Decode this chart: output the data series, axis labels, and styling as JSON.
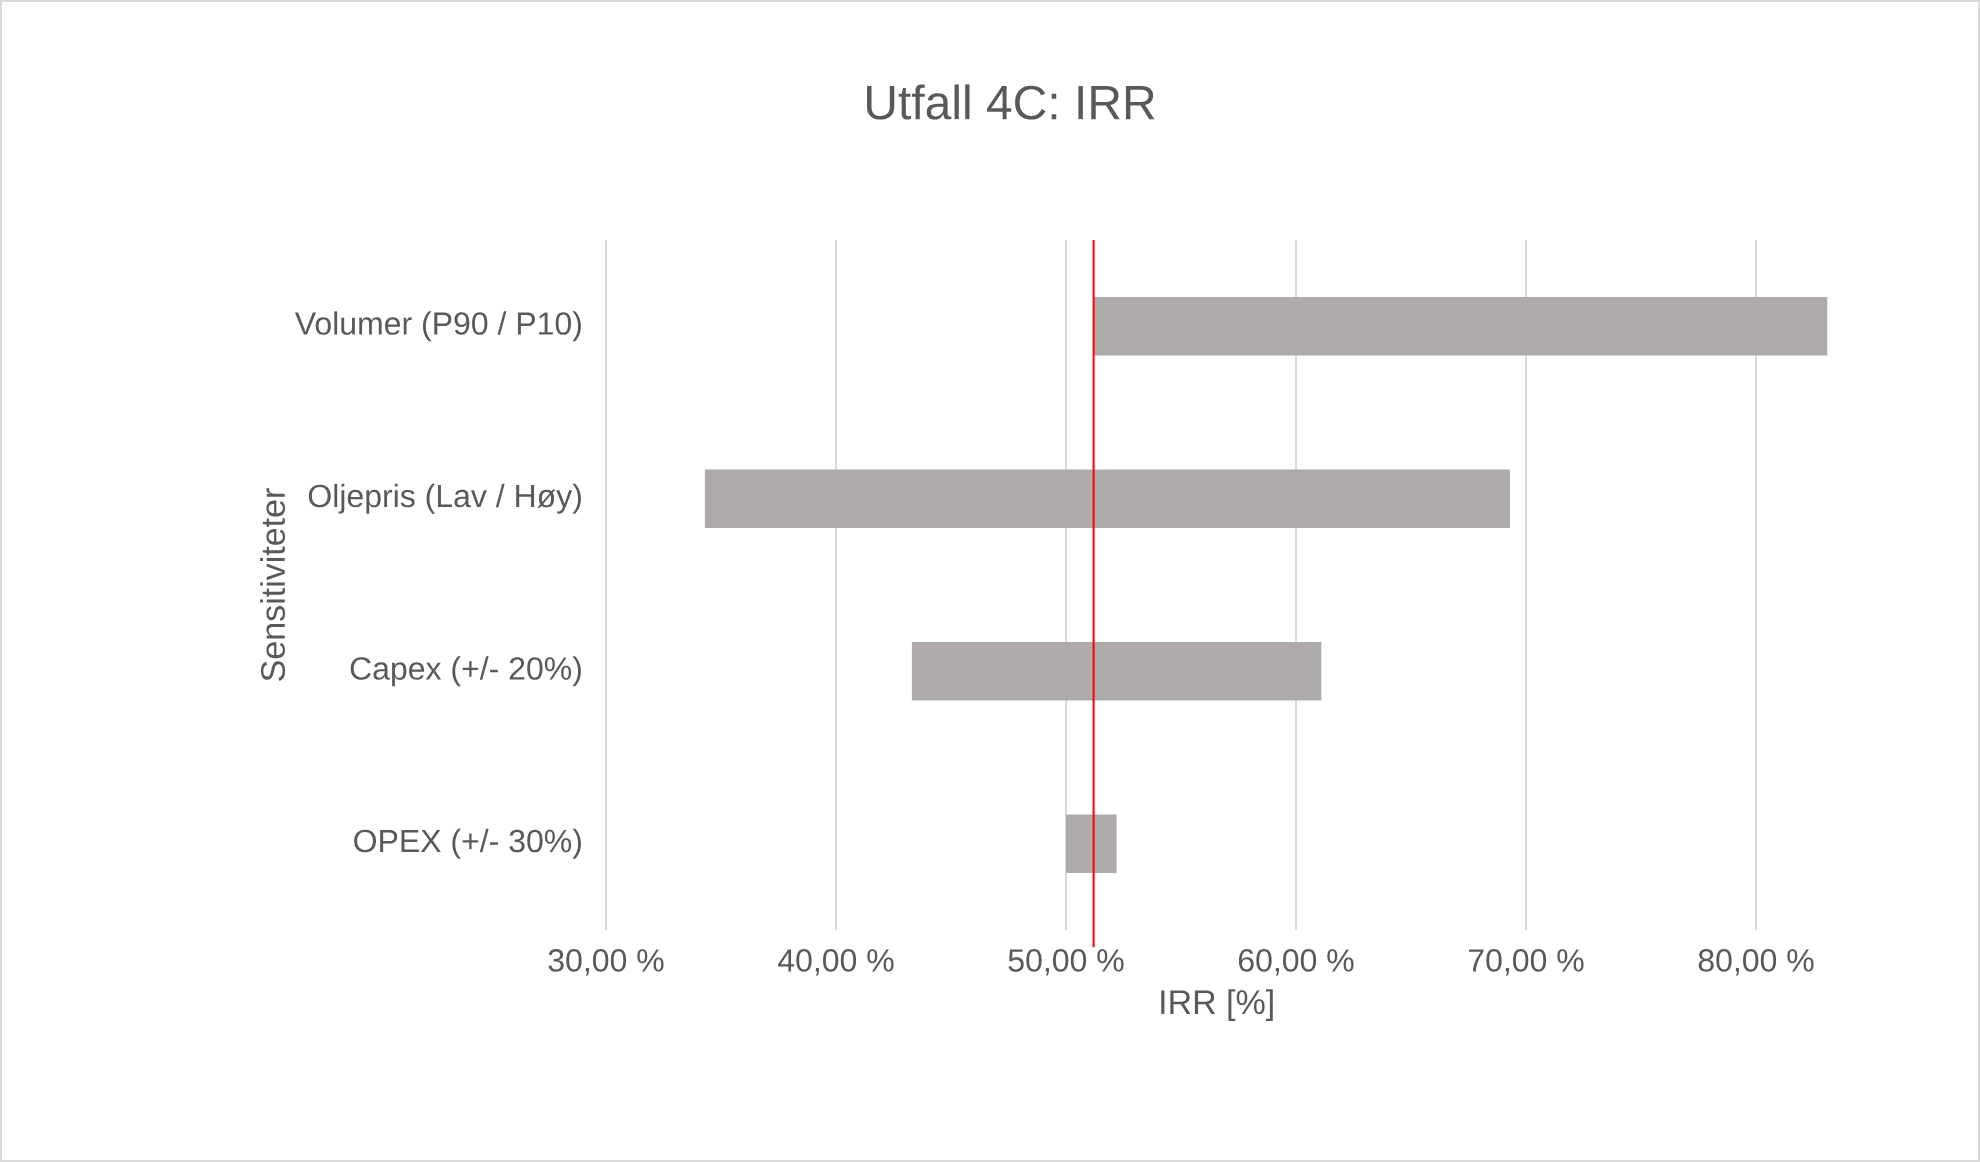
{
  "chart_data": {
    "type": "bar",
    "orientation": "horizontal",
    "title": "Utfall 4C: IRR",
    "xlabel": "IRR [%]",
    "ylabel": "Sensitiviteter",
    "categories": [
      "Volumer (P90 / P10)",
      "Oljepris (Lav / Høy)",
      "Capex (+/- 20%)",
      "OPEX (+/- 30%)"
    ],
    "base": [
      51.2,
      34.3,
      43.3,
      50.0
    ],
    "values": [
      31.9,
      35.0,
      17.8,
      2.2
    ],
    "color": "#aeaaaa",
    "xlim": [
      30,
      83.1
    ],
    "xticks": [
      {
        "value": 30,
        "label": "30,00 %"
      },
      {
        "value": 40,
        "label": "40,00 %"
      },
      {
        "value": 50,
        "label": "50,00 %"
      },
      {
        "value": 60,
        "label": "60,00 %"
      },
      {
        "value": 70,
        "label": "70,00 %"
      },
      {
        "value": 80,
        "label": "80,00 %"
      }
    ],
    "grid": "x",
    "ref_lines": [
      {
        "axis": "x",
        "value": 51.2,
        "color": "#ff0000"
      }
    ]
  }
}
